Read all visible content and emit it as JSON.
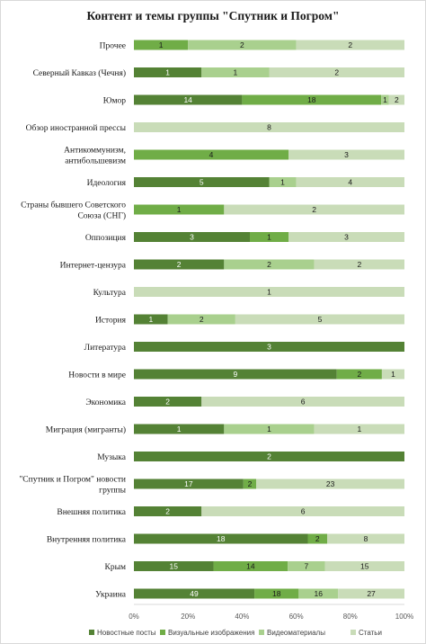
{
  "chart_data": {
    "type": "bar",
    "orientation": "horizontal",
    "stacked": "percent",
    "title": "Контент и темы группы \"Спутник и Погром\"",
    "categories": [
      "Прочее",
      "Северный Кавказ (Чечня)",
      "Юмор",
      "Обзор иностранной прессы",
      "Антикоммунизм, антибольшевизм",
      "Идеология",
      "Страны бывшего Советского Союза (СНГ)",
      "Оппозиция",
      "Интернет-цензура",
      "Культура",
      "История",
      "Литература",
      "Новости в мире",
      "Экономика",
      "Миграция (мигранты)",
      "Музыка",
      "\"Спутник и Погром\" новости группы",
      "Внешняя политика",
      "Внутренняя политика",
      "Крым",
      "Украина"
    ],
    "category_lines": [
      [
        "Прочее"
      ],
      [
        "Северный Кавказ (Чечня)"
      ],
      [
        "Юмор"
      ],
      [
        "Обзор иностранной прессы"
      ],
      [
        "Антикоммунизм,",
        "антибольшевизм"
      ],
      [
        "Идеология"
      ],
      [
        "Страны бывшего Советского",
        "Союза (СНГ)"
      ],
      [
        "Оппозиция"
      ],
      [
        "Интернет-цензура"
      ],
      [
        "Культура"
      ],
      [
        "История"
      ],
      [
        "Литература"
      ],
      [
        "Новости в мире"
      ],
      [
        "Экономика"
      ],
      [
        "Миграция (мигранты)"
      ],
      [
        "Музыка"
      ],
      [
        "\"Спутник и Погром\" новости",
        "группы"
      ],
      [
        "Внешняя политика"
      ],
      [
        "Внутренняя политика"
      ],
      [
        "Крым"
      ],
      [
        "Украина"
      ]
    ],
    "series": [
      {
        "name": "Новостные посты",
        "color": "#548235",
        "label_color": "#ffffff",
        "values": [
          0,
          1,
          14,
          0,
          0,
          5,
          0,
          3,
          2,
          0,
          1,
          3,
          9,
          2,
          1,
          2,
          17,
          2,
          18,
          15,
          49
        ]
      },
      {
        "name": "Визуальные изображения",
        "color": "#70ad47",
        "label_color": "#1a1a1a",
        "values": [
          1,
          0,
          18,
          0,
          4,
          0,
          1,
          1,
          0,
          0,
          0,
          0,
          2,
          0,
          0,
          0,
          2,
          0,
          2,
          14,
          18
        ]
      },
      {
        "name": "Видеоматериалы",
        "color": "#a9d08e",
        "label_color": "#1a1a1a",
        "values": [
          2,
          1,
          1,
          0,
          0,
          1,
          0,
          0,
          2,
          0,
          2,
          0,
          0,
          0,
          1,
          0,
          0,
          0,
          0,
          7,
          16
        ]
      },
      {
        "name": "Статьи",
        "color": "#c9dcb8",
        "label_color": "#1a1a1a",
        "values": [
          2,
          2,
          2,
          8,
          3,
          4,
          2,
          3,
          2,
          1,
          5,
          0,
          1,
          6,
          1,
          0,
          23,
          6,
          8,
          15,
          27
        ]
      }
    ],
    "xaxis": {
      "min": 0,
      "max": 100,
      "unit": "%",
      "ticks": [
        "0%",
        "20%",
        "40%",
        "60%",
        "80%",
        "100%"
      ]
    },
    "grid": false,
    "legend_position": "bottom"
  }
}
